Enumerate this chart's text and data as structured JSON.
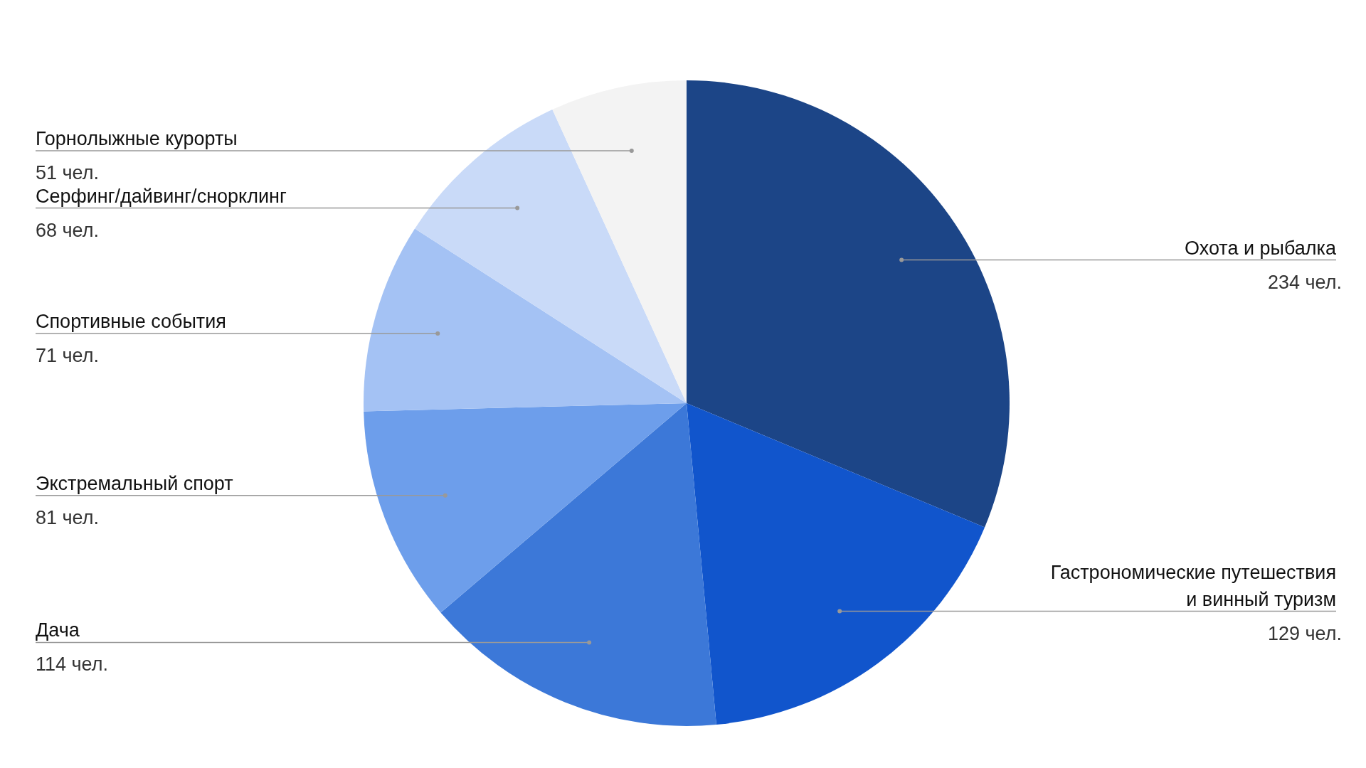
{
  "chart_data": {
    "type": "pie",
    "categories": [
      "Охота и рыбалка",
      "Гастрономические путешествия\nи винный туризм",
      "Дача",
      "Экстремальный спорт",
      "Спортивные события",
      "Серфинг/дайвинг/снорклинг",
      "Горнолыжные курорты"
    ],
    "values": [
      234,
      129,
      114,
      81,
      71,
      68,
      51
    ],
    "value_labels": [
      "234 чел.",
      "129 чел.",
      "114 чел.",
      "81 чел.",
      "71 чел.",
      "68 чел.",
      "51 чел."
    ],
    "colors": [
      "#1c4587",
      "#1155cc",
      "#3c78d8",
      "#6d9eeb",
      "#a4c2f4",
      "#c9daf8",
      "#f3f3f3"
    ],
    "legend": false
  }
}
